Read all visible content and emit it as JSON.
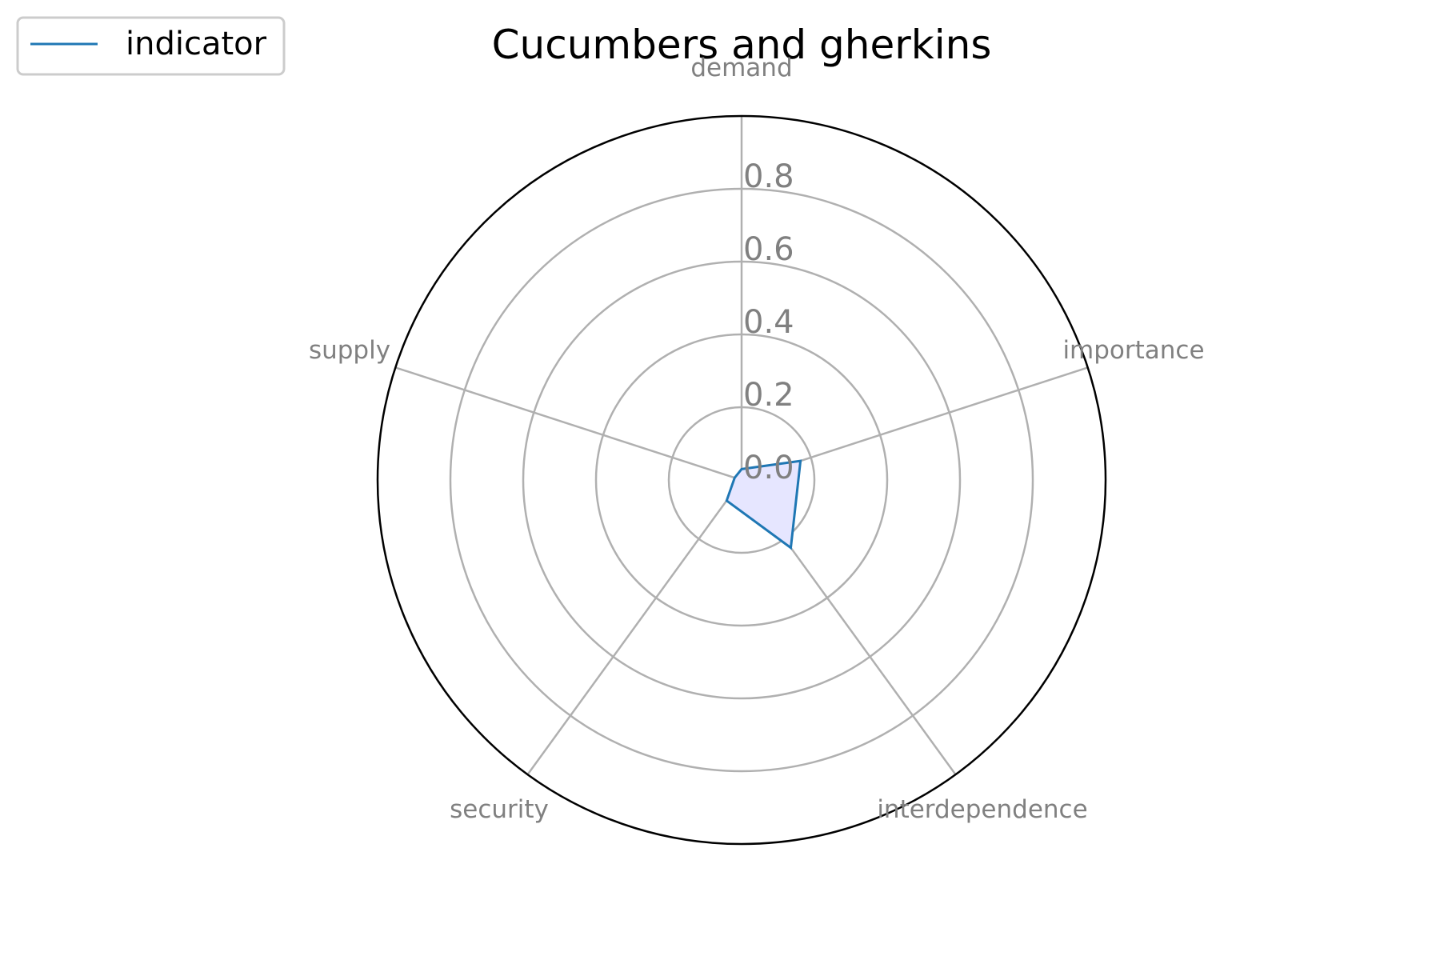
{
  "chart_data": {
    "type": "radar",
    "title": "Cucumbers and gherkins",
    "axes": [
      "demand",
      "importance",
      "interdependence",
      "security",
      "supply"
    ],
    "rticks": [
      "0.0",
      "0.2",
      "0.4",
      "0.6",
      "0.8"
    ],
    "rlim": [
      0,
      1
    ],
    "grid": true,
    "legend": {
      "position": "top-left",
      "entries": [
        "indicator"
      ]
    },
    "series": [
      {
        "name": "indicator",
        "values": [
          0.03,
          0.17,
          0.23,
          0.07,
          0.02
        ]
      }
    ],
    "colors": {
      "line": "#1f77b4",
      "fill": "#e6e6ff",
      "grid": "#b0b0b0",
      "frame": "#000000"
    }
  }
}
